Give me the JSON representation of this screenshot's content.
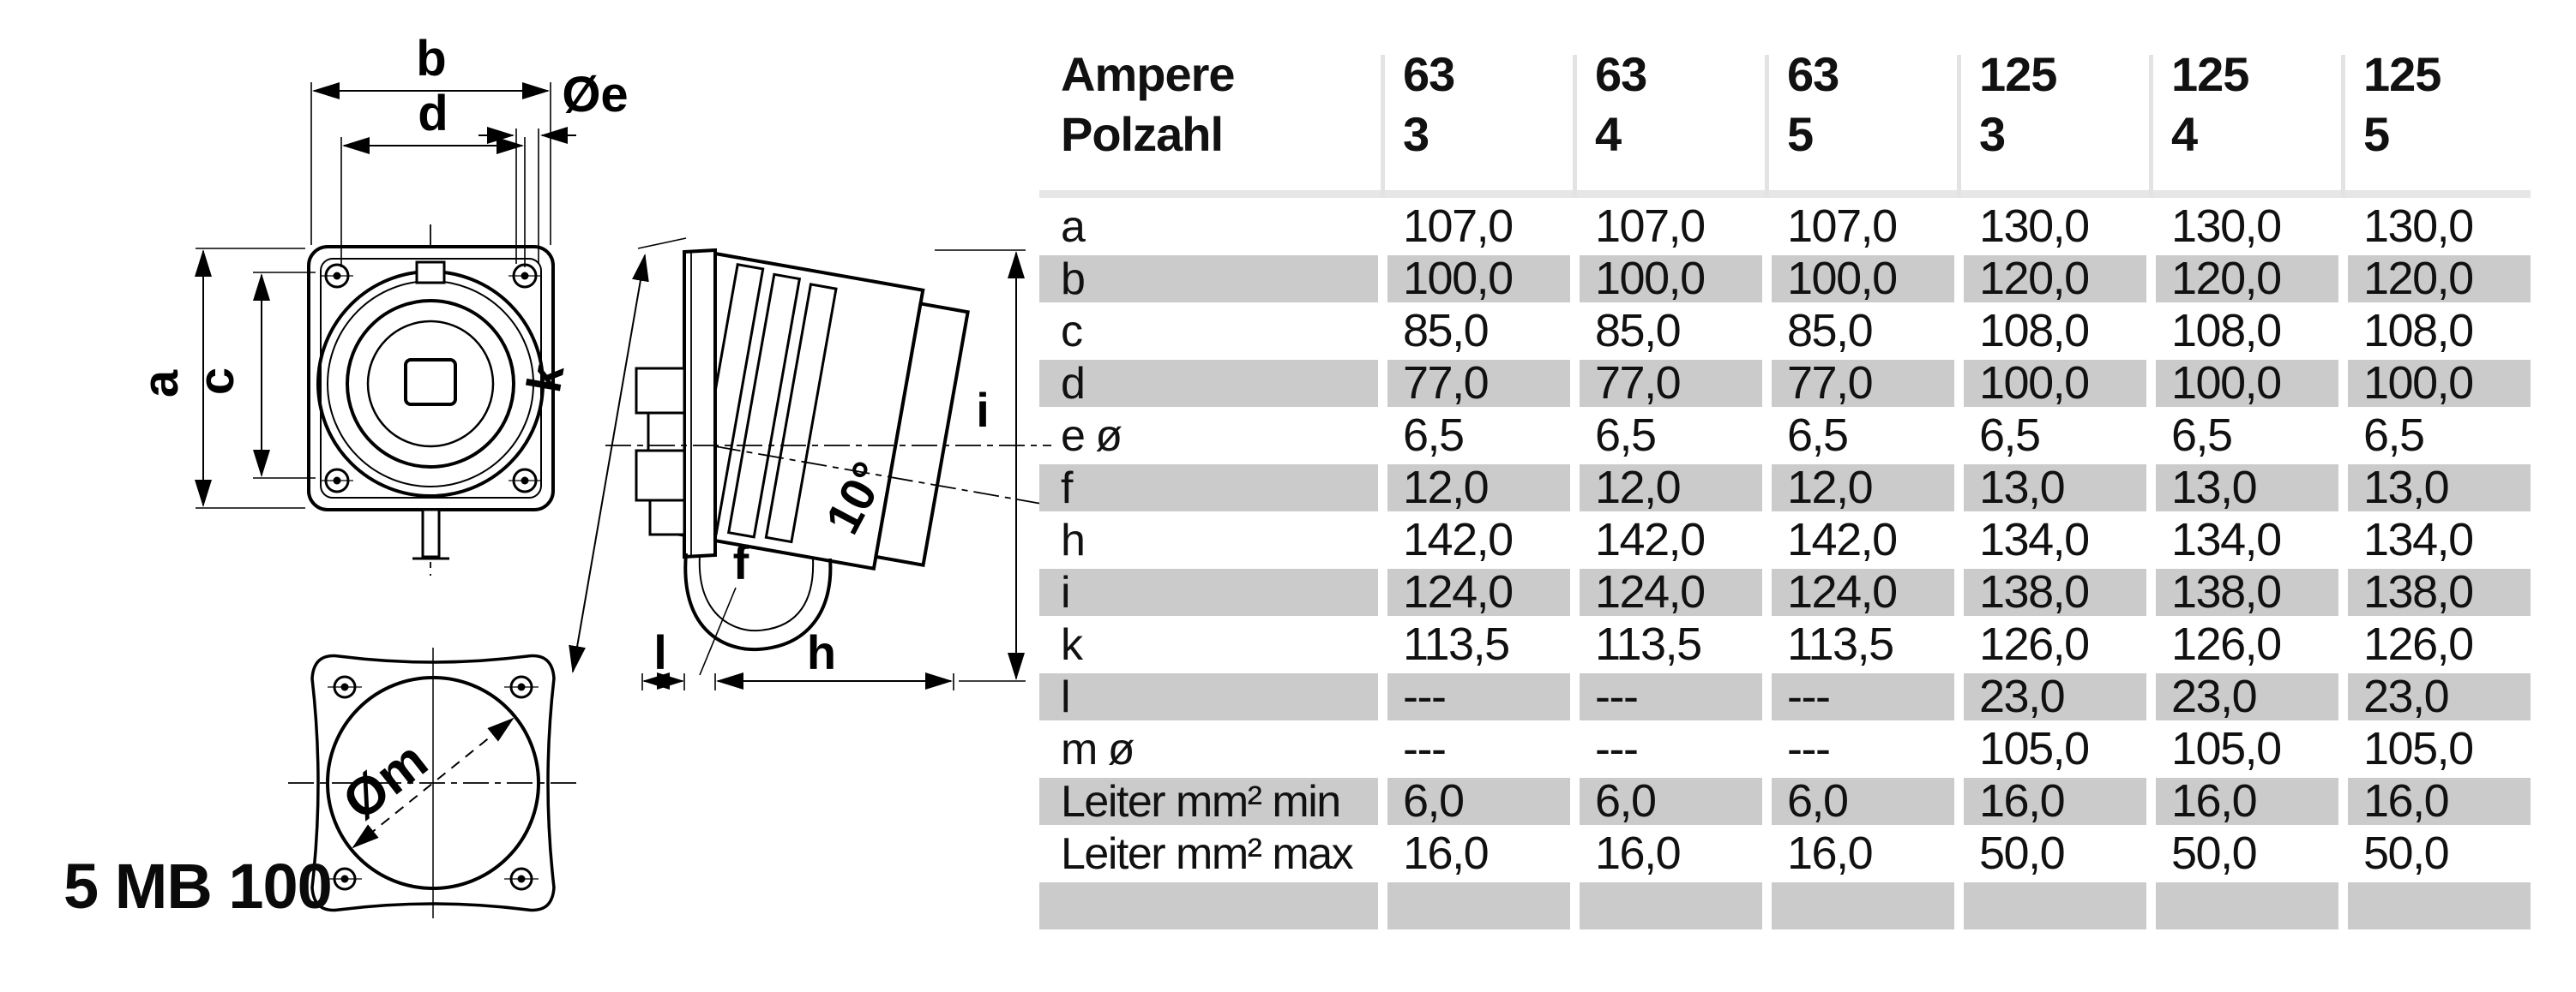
{
  "product_label": "5 MB 100",
  "drawing": {
    "front_view": {
      "labels": {
        "b": "b",
        "d": "d",
        "oe": "Øe",
        "a": "a",
        "c": "c"
      }
    },
    "side_view": {
      "labels": {
        "k": "k",
        "i": "i",
        "angle": "10°",
        "f": "f",
        "l": "l",
        "h": "h"
      }
    },
    "bottom_view": {
      "labels": {
        "om": "Øm"
      }
    }
  },
  "table": {
    "header": {
      "row1": "Ampere",
      "row2": "Polzahl",
      "columns": [
        {
          "ampere": "63",
          "polzahl": "3"
        },
        {
          "ampere": "63",
          "polzahl": "4"
        },
        {
          "ampere": "63",
          "polzahl": "5"
        },
        {
          "ampere": "125",
          "polzahl": "3"
        },
        {
          "ampere": "125",
          "polzahl": "4"
        },
        {
          "ampere": "125",
          "polzahl": "5"
        }
      ]
    },
    "rows": [
      {
        "label": "a",
        "shaded": false,
        "values": [
          "107,0",
          "107,0",
          "107,0",
          "130,0",
          "130,0",
          "130,0"
        ]
      },
      {
        "label": "b",
        "shaded": true,
        "values": [
          "100,0",
          "100,0",
          "100,0",
          "120,0",
          "120,0",
          "120,0"
        ]
      },
      {
        "label": "c",
        "shaded": false,
        "values": [
          "85,0",
          "85,0",
          "85,0",
          "108,0",
          "108,0",
          "108,0"
        ]
      },
      {
        "label": "d",
        "shaded": true,
        "values": [
          "77,0",
          "77,0",
          "77,0",
          "100,0",
          "100,0",
          "100,0"
        ]
      },
      {
        "label": "e ø",
        "shaded": false,
        "values": [
          "6,5",
          "6,5",
          "6,5",
          "6,5",
          "6,5",
          "6,5"
        ]
      },
      {
        "label": "f",
        "shaded": true,
        "values": [
          "12,0",
          "12,0",
          "12,0",
          "13,0",
          "13,0",
          "13,0"
        ]
      },
      {
        "label": "h",
        "shaded": false,
        "values": [
          "142,0",
          "142,0",
          "142,0",
          "134,0",
          "134,0",
          "134,0"
        ]
      },
      {
        "label": "i",
        "shaded": true,
        "values": [
          "124,0",
          "124,0",
          "124,0",
          "138,0",
          "138,0",
          "138,0"
        ]
      },
      {
        "label": "k",
        "shaded": false,
        "values": [
          "113,5",
          "113,5",
          "113,5",
          "126,0",
          "126,0",
          "126,0"
        ]
      },
      {
        "label": "l",
        "shaded": true,
        "values": [
          "---",
          "---",
          "---",
          "23,0",
          "23,0",
          "23,0"
        ]
      },
      {
        "label": "m ø",
        "shaded": false,
        "values": [
          "---",
          "---",
          "---",
          "105,0",
          "105,0",
          "105,0"
        ]
      },
      {
        "label": "Leiter mm² min",
        "shaded": true,
        "values": [
          "6,0",
          "6,0",
          "6,0",
          "16,0",
          "16,0",
          "16,0"
        ]
      },
      {
        "label": "Leiter mm² max",
        "shaded": false,
        "values": [
          "16,0",
          "16,0",
          "16,0",
          "50,0",
          "50,0",
          "50,0"
        ]
      },
      {
        "label": "",
        "shaded": true,
        "values": [
          "",
          "",
          "",
          "",
          "",
          ""
        ]
      }
    ],
    "colors": {
      "row_shade": "#cbcbcb",
      "header_rule": "#e6e6e6",
      "column_rule": "#e3e3e3"
    }
  }
}
